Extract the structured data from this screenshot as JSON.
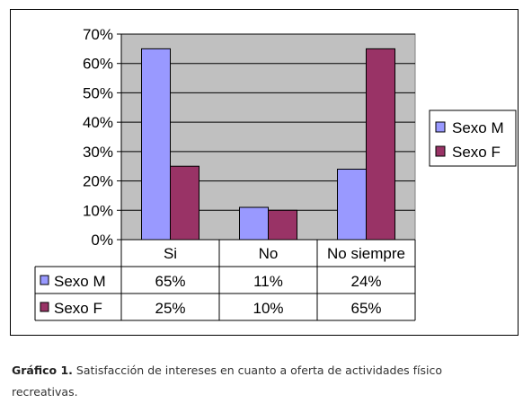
{
  "chart_data": {
    "type": "bar",
    "categories": [
      "Si",
      "No",
      "No siempre"
    ],
    "series": [
      {
        "name": "Sexo M",
        "values": [
          65,
          11,
          24
        ],
        "labels": [
          "65%",
          "11%",
          "24%"
        ],
        "color": "#9999FF"
      },
      {
        "name": "Sexo F",
        "values": [
          25,
          10,
          65
        ],
        "labels": [
          "25%",
          "10%",
          "65%"
        ],
        "color": "#993366"
      }
    ],
    "yticks": [
      "0%",
      "10%",
      "20%",
      "30%",
      "40%",
      "50%",
      "60%",
      "70%"
    ],
    "ylim": [
      0,
      70
    ],
    "legend": "right",
    "plot_background": "#C0C0C0",
    "grid": true,
    "data_table": true
  },
  "caption": {
    "label": "Gráfico 1.",
    "text": " Satisfacción de intereses en cuanto a oferta de actividades físico recreativas."
  }
}
